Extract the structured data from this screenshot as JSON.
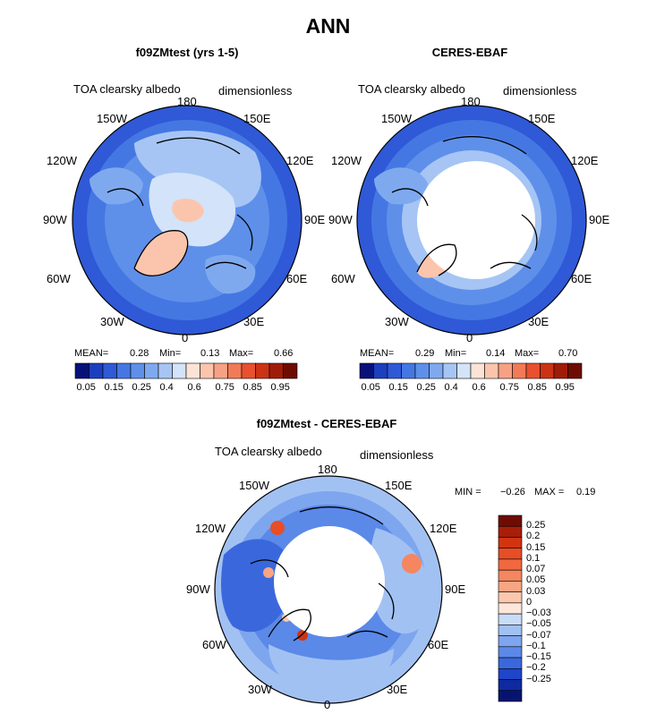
{
  "page": {
    "title": "ANN"
  },
  "chart_data": [
    {
      "type": "heatmap",
      "projection": "north-polar-stereographic",
      "title": "f09ZMtest (yrs 1-5)",
      "variable": "TOA clearsky albedo",
      "units": "dimensionless",
      "lon_labels": [
        "180",
        "150W",
        "150E",
        "120W",
        "120E",
        "90W",
        "90E",
        "60W",
        "60E",
        "30W",
        "30E",
        "0"
      ],
      "stats": {
        "mean_label": "MEAN=",
        "mean": "0.28",
        "min_label": "Min=",
        "min": "0.13",
        "max_label": "Max=",
        "max": "0.66"
      },
      "colorbar": {
        "orientation": "horizontal",
        "levels": [
          "0.05",
          "0.15",
          "0.25",
          "0.4",
          "0.6",
          "0.75",
          "0.85",
          "0.95"
        ],
        "colors": [
          "#08117a",
          "#1c3fbf",
          "#2f59d6",
          "#4577e3",
          "#5e90ea",
          "#7fa9ef",
          "#a6c5f4",
          "#d3e3f9",
          "#fde3d6",
          "#fbc5ad",
          "#f7a184",
          "#f27a57",
          "#e8502f",
          "#cc3214",
          "#a01c08",
          "#6e0c03"
        ]
      }
    },
    {
      "type": "heatmap",
      "projection": "north-polar-stereographic",
      "title": "CERES-EBAF",
      "variable": "TOA clearsky albedo",
      "units": "dimensionless",
      "lon_labels": [
        "180",
        "150W",
        "150E",
        "120W",
        "120E",
        "90W",
        "90E",
        "60W",
        "60E",
        "30W",
        "30E",
        "0"
      ],
      "stats": {
        "mean_label": "MEAN=",
        "mean": "0.29",
        "min_label": "Min=",
        "min": "0.14",
        "max_label": "Max=",
        "max": "0.70"
      },
      "colorbar": {
        "orientation": "horizontal",
        "levels": [
          "0.05",
          "0.15",
          "0.25",
          "0.4",
          "0.6",
          "0.75",
          "0.85",
          "0.95"
        ],
        "colors": [
          "#08117a",
          "#1c3fbf",
          "#2f59d6",
          "#4577e3",
          "#5e90ea",
          "#7fa9ef",
          "#a6c5f4",
          "#d3e3f9",
          "#fde3d6",
          "#fbc5ad",
          "#f7a184",
          "#f27a57",
          "#e8502f",
          "#cc3214",
          "#a01c08",
          "#6e0c03"
        ]
      }
    },
    {
      "type": "heatmap",
      "projection": "north-polar-stereographic",
      "title": "f09ZMtest - CERES-EBAF",
      "variable": "TOA clearsky albedo",
      "units": "dimensionless",
      "lon_labels": [
        "180",
        "150W",
        "150E",
        "120W",
        "120E",
        "90W",
        "90E",
        "60W",
        "60E",
        "30W",
        "30E",
        "0"
      ],
      "stats": {
        "min_label": "MIN =",
        "min": "−0.26",
        "max_label": "MAX =",
        "max": "0.19"
      },
      "colorbar": {
        "orientation": "vertical",
        "levels": [
          "0.25",
          "0.2",
          "0.15",
          "0.1",
          "0.07",
          "0.05",
          "0.03",
          "0",
          "−0.03",
          "−0.05",
          "−0.07",
          "−0.1",
          "−0.15",
          "−0.2",
          "−0.25"
        ],
        "colors": [
          "#6e0c03",
          "#a81e08",
          "#d03510",
          "#e84d25",
          "#f1683f",
          "#f5865f",
          "#f8a584",
          "#fbc8ae",
          "#fde7da",
          "#c9dcf6",
          "#a2c1f3",
          "#7ea6ef",
          "#5a89e8",
          "#3a68dc",
          "#1f45c8",
          "#0f2aa0",
          "#061470"
        ]
      }
    }
  ]
}
